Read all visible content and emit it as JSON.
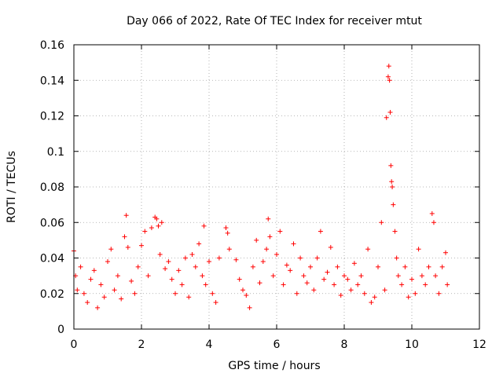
{
  "chart_data": {
    "type": "scatter",
    "title": "Day 066 of 2022, Rate Of TEC Index for receiver mtut",
    "xlabel": "GPS time / hours",
    "ylabel": "ROTI / TECUs",
    "xlim": [
      0,
      12
    ],
    "ylim": [
      0,
      0.16
    ],
    "xticks": [
      0,
      2,
      4,
      6,
      8,
      10,
      12
    ],
    "xtick_labels": [
      "0",
      "2",
      "4",
      "6",
      "8",
      "10",
      "12"
    ],
    "yticks": [
      0,
      0.02,
      0.04,
      0.06,
      0.08,
      0.1,
      0.12,
      0.14,
      0.16
    ],
    "ytick_labels": [
      "0",
      "0.02",
      "0.04",
      "0.06",
      "0.08",
      "0.1",
      "0.12",
      "0.14",
      "0.16"
    ],
    "grid": true,
    "marker": "+",
    "marker_color": "#ff0000",
    "series": [
      {
        "name": "ROTI",
        "x": [
          0.0,
          0.05,
          0.1,
          0.2,
          0.3,
          0.4,
          0.5,
          0.6,
          0.7,
          0.8,
          0.9,
          1.0,
          1.1,
          1.2,
          1.3,
          1.4,
          1.5,
          1.55,
          1.6,
          1.7,
          1.8,
          1.9,
          2.0,
          2.1,
          2.2,
          2.3,
          2.4,
          2.45,
          2.5,
          2.55,
          2.6,
          2.7,
          2.8,
          2.9,
          3.0,
          3.1,
          3.2,
          3.3,
          3.4,
          3.5,
          3.6,
          3.7,
          3.8,
          3.85,
          3.9,
          4.0,
          4.1,
          4.2,
          4.3,
          4.5,
          4.55,
          4.6,
          4.8,
          4.9,
          5.0,
          5.1,
          5.2,
          5.3,
          5.4,
          5.5,
          5.6,
          5.7,
          5.75,
          5.8,
          5.9,
          6.0,
          6.1,
          6.2,
          6.3,
          6.4,
          6.5,
          6.6,
          6.7,
          6.8,
          6.9,
          7.0,
          7.1,
          7.2,
          7.3,
          7.4,
          7.5,
          7.6,
          7.7,
          7.8,
          7.9,
          8.0,
          8.1,
          8.2,
          8.3,
          8.4,
          8.5,
          8.6,
          8.7,
          8.8,
          8.9,
          9.0,
          9.1,
          9.2,
          9.25,
          9.3,
          9.32,
          9.34,
          9.36,
          9.38,
          9.4,
          9.42,
          9.45,
          9.5,
          9.55,
          9.6,
          9.7,
          9.8,
          9.9,
          10.0,
          10.1,
          10.2,
          10.3,
          10.4,
          10.5,
          10.6,
          10.65,
          10.7,
          10.8,
          10.9,
          11.0,
          11.05
        ],
        "y": [
          0.044,
          0.03,
          0.022,
          0.035,
          0.02,
          0.015,
          0.028,
          0.033,
          0.012,
          0.025,
          0.018,
          0.038,
          0.045,
          0.022,
          0.03,
          0.017,
          0.052,
          0.064,
          0.046,
          0.027,
          0.02,
          0.035,
          0.047,
          0.055,
          0.03,
          0.057,
          0.063,
          0.062,
          0.058,
          0.042,
          0.06,
          0.034,
          0.038,
          0.028,
          0.02,
          0.033,
          0.025,
          0.04,
          0.018,
          0.042,
          0.035,
          0.048,
          0.03,
          0.058,
          0.025,
          0.038,
          0.02,
          0.015,
          0.04,
          0.057,
          0.054,
          0.045,
          0.039,
          0.028,
          0.022,
          0.019,
          0.012,
          0.035,
          0.05,
          0.026,
          0.038,
          0.045,
          0.062,
          0.052,
          0.03,
          0.042,
          0.055,
          0.025,
          0.036,
          0.033,
          0.048,
          0.02,
          0.04,
          0.03,
          0.026,
          0.035,
          0.022,
          0.04,
          0.055,
          0.028,
          0.032,
          0.046,
          0.025,
          0.035,
          0.019,
          0.03,
          0.028,
          0.022,
          0.037,
          0.025,
          0.03,
          0.02,
          0.045,
          0.015,
          0.018,
          0.035,
          0.06,
          0.022,
          0.119,
          0.142,
          0.148,
          0.14,
          0.122,
          0.092,
          0.083,
          0.08,
          0.07,
          0.055,
          0.04,
          0.03,
          0.025,
          0.035,
          0.018,
          0.028,
          0.02,
          0.045,
          0.03,
          0.025,
          0.035,
          0.065,
          0.06,
          0.03,
          0.02,
          0.035,
          0.043,
          0.025
        ]
      }
    ]
  }
}
